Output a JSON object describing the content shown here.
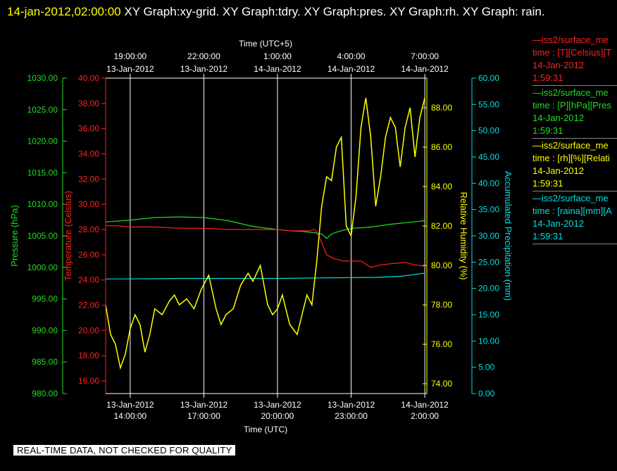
{
  "header": {
    "timestamp": "14-jan-2012,02:00:00",
    "titles": "XY Graph:xy-grid.  XY Graph:tdry.  XY Graph:pres.  XY Graph:rh.  XY Graph: rain."
  },
  "quality_note": "REAL-TIME DATA, NOT CHECKED FOR QUALITY",
  "colors": {
    "temperature": "#ff2020",
    "pressure": "#22dd22",
    "humidity": "#ffff00",
    "precipitation": "#00e0e0",
    "grid": "#ffffff",
    "background": "#000000"
  },
  "legend": [
    {
      "name": "—iss2/surface_me",
      "label": "time : [T][Celsius][T",
      "date": "14-Jan-2012",
      "time": "1:59:31",
      "color": "#ff2020"
    },
    {
      "name": "—iss2/surface_me",
      "label": "time : [P][hPa][Pres",
      "date": "14-Jan-2012",
      "time": "1:59:31",
      "color": "#22dd22"
    },
    {
      "name": "—iss2/surface_me",
      "label": "time : [rh][%][Relati",
      "date": "14-Jan-2012",
      "time": "1:59:31",
      "color": "#ffff00"
    },
    {
      "name": "—iss2/surface_me",
      "label": "time : [raina][mm][A",
      "date": "14-Jan-2012",
      "time": "1:59:31",
      "color": "#00e0e0"
    }
  ],
  "chart_data": {
    "type": "line",
    "x_range_utc": [
      "13-Jan-2012 13:00:00",
      "14-Jan-2012 02:05:00"
    ],
    "xlabel_bottom": "Time (UTC)",
    "xlabel_top": "Time (UTC+5)",
    "bottom_ticks": [
      {
        "date": "13-Jan-2012",
        "time": "14:00:00",
        "hour": 14
      },
      {
        "date": "13-Jan-2012",
        "time": "17:00:00",
        "hour": 17
      },
      {
        "date": "13-Jan-2012",
        "time": "20:00:00",
        "hour": 20
      },
      {
        "date": "13-Jan-2012",
        "time": "23:00:00",
        "hour": 23
      },
      {
        "date": "14-Jan-2012",
        "time": "2:00:00",
        "hour": 26
      }
    ],
    "top_ticks": [
      {
        "time": "19:00:00",
        "date": "13-Jan-2012"
      },
      {
        "time": "22:00:00",
        "date": "13-Jan-2012"
      },
      {
        "time": "1:00:00",
        "date": "14-Jan-2012"
      },
      {
        "time": "4:00:00",
        "date": "14-Jan-2012"
      },
      {
        "time": "7:00:00",
        "date": "14-Jan-2012"
      }
    ],
    "grid": true,
    "axes": {
      "pressure": {
        "label": "Pressure (hPa)",
        "range": [
          980,
          1030
        ],
        "ticks": [
          "980.00",
          "985.00",
          "990.00",
          "995.00",
          "1000.00",
          "1005.00",
          "1010.00",
          "1015.00",
          "1020.00",
          "1025.00",
          "1030.00"
        ]
      },
      "temperature": {
        "label": "Temperature (Celsius)",
        "range": [
          15,
          40
        ],
        "ticks": [
          "16.00",
          "18.00",
          "20.00",
          "22.00",
          "24.00",
          "26.00",
          "28.00",
          "30.00",
          "32.00",
          "34.00",
          "36.00",
          "38.00",
          "40.00"
        ]
      },
      "humidity": {
        "label": "Relative Humidity (%)",
        "range": [
          73.5,
          89.5
        ],
        "ticks": [
          "74.00",
          "76.00",
          "78.00",
          "80.00",
          "82.00",
          "84.00",
          "86.00",
          "88.00"
        ]
      },
      "precipitation": {
        "label": "Accumulated Precipitation (mm)",
        "range": [
          0,
          60
        ],
        "ticks": [
          "0.00",
          "5.00",
          "10.00",
          "15.00",
          "20.00",
          "25.00",
          "30.00",
          "35.00",
          "40.00",
          "45.00",
          "50.00",
          "55.00",
          "60.00"
        ]
      }
    },
    "series": [
      {
        "key": "temperature",
        "x_hours": [
          13.0,
          13.5,
          14.0,
          15.0,
          16.0,
          17.0,
          18.0,
          19.0,
          20.0,
          20.5,
          21.0,
          21.3,
          21.5,
          21.6,
          21.8,
          22.0,
          22.3,
          22.7,
          23.0,
          23.4,
          23.8,
          24.2,
          24.7,
          25.2,
          25.6,
          26.0
        ],
        "values": [
          28.3,
          28.3,
          28.2,
          28.2,
          28.1,
          28.1,
          28.0,
          28.0,
          28.0,
          27.9,
          27.9,
          27.9,
          28.0,
          27.8,
          27.0,
          26.0,
          25.7,
          25.5,
          25.5,
          25.5,
          25.0,
          25.2,
          25.3,
          25.4,
          25.2,
          25.1
        ]
      },
      {
        "key": "pressure",
        "x_hours": [
          13.0,
          14.0,
          15.0,
          16.0,
          17.0,
          18.0,
          19.0,
          20.0,
          20.5,
          21.0,
          21.5,
          21.8,
          22.0,
          22.2,
          22.5,
          23.0,
          23.5,
          24.0,
          24.5,
          25.0,
          25.5,
          26.0
        ],
        "values": [
          1007.2,
          1007.5,
          1007.9,
          1008.0,
          1007.9,
          1007.4,
          1006.5,
          1006.0,
          1005.8,
          1005.7,
          1005.5,
          1005.3,
          1004.6,
          1005.3,
          1005.7,
          1006.2,
          1006.3,
          1006.5,
          1006.8,
          1007.0,
          1007.2,
          1007.4
        ]
      },
      {
        "key": "humidity",
        "x_hours": [
          13.0,
          13.2,
          13.4,
          13.6,
          13.8,
          14.0,
          14.2,
          14.4,
          14.6,
          14.8,
          15.0,
          15.3,
          15.6,
          15.8,
          16.0,
          16.3,
          16.6,
          16.9,
          17.2,
          17.5,
          17.7,
          17.9,
          18.2,
          18.5,
          18.8,
          19.0,
          19.3,
          19.6,
          19.8,
          20.0,
          20.2,
          20.5,
          20.8,
          21.0,
          21.2,
          21.4,
          21.6,
          21.8,
          22.0,
          22.2,
          22.4,
          22.6,
          22.8,
          23.0,
          23.2,
          23.4,
          23.6,
          23.8,
          24.0,
          24.2,
          24.4,
          24.6,
          24.8,
          25.0,
          25.2,
          25.4,
          25.6,
          25.8,
          26.0
        ],
        "values": [
          78.0,
          76.5,
          76.0,
          74.8,
          75.5,
          76.8,
          77.5,
          77.0,
          75.6,
          76.5,
          77.8,
          77.5,
          78.2,
          78.5,
          78.0,
          78.3,
          77.8,
          78.8,
          79.5,
          77.8,
          77.0,
          77.5,
          77.8,
          79.0,
          79.6,
          79.2,
          80.0,
          78.0,
          77.5,
          77.8,
          78.5,
          77.0,
          76.5,
          77.5,
          78.5,
          78.0,
          80.2,
          83.0,
          84.5,
          84.3,
          86.0,
          86.5,
          82.0,
          81.5,
          83.5,
          87.0,
          88.5,
          86.5,
          83.0,
          84.5,
          86.5,
          87.5,
          87.0,
          85.0,
          87.0,
          88.0,
          85.5,
          87.5,
          88.5
        ]
      },
      {
        "key": "precipitation",
        "x_hours": [
          13.0,
          14.0,
          16.0,
          18.0,
          20.0,
          22.0,
          24.0,
          25.0,
          25.5,
          26.0
        ],
        "values": [
          21.8,
          21.8,
          21.9,
          21.9,
          21.9,
          22.0,
          22.1,
          22.3,
          22.6,
          22.9
        ]
      }
    ]
  }
}
